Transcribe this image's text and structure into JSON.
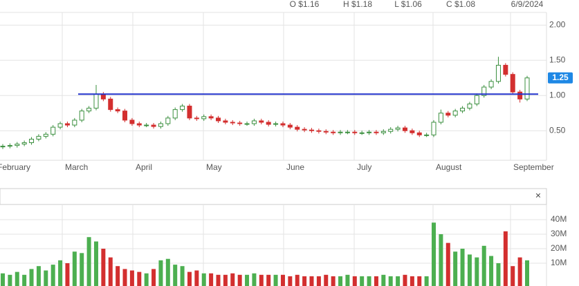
{
  "header": {
    "open": "O $1.16",
    "high": "H $1.18",
    "low": "L $1.06",
    "close": "C $1.08",
    "date": "6/9/2024"
  },
  "chart_data": [
    {
      "type": "candlestick",
      "month_labels": [
        "February",
        "March",
        "April",
        "May",
        "June",
        "July",
        "August",
        "September"
      ],
      "open": [
        0.27,
        0.28,
        0.29,
        0.31,
        0.33,
        0.38,
        0.42,
        0.45,
        0.55,
        0.6,
        0.58,
        0.65,
        0.78,
        0.82,
        1.02,
        0.95,
        0.8,
        0.78,
        0.65,
        0.6,
        0.58,
        0.58,
        0.56,
        0.6,
        0.68,
        0.8,
        0.85,
        0.68,
        0.67,
        0.7,
        0.68,
        0.64,
        0.62,
        0.61,
        0.6,
        0.6,
        0.64,
        0.62,
        0.59,
        0.6,
        0.58,
        0.55,
        0.52,
        0.51,
        0.5,
        0.49,
        0.48,
        0.47,
        0.48,
        0.48,
        0.47,
        0.47,
        0.48,
        0.47,
        0.49,
        0.52,
        0.54,
        0.5,
        0.47,
        0.44,
        0.44,
        0.62,
        0.75,
        0.72,
        0.78,
        0.82,
        0.88,
        1.0,
        1.12,
        1.2,
        1.43,
        1.3,
        1.05,
        0.95
      ],
      "high": [
        0.31,
        0.32,
        0.34,
        0.36,
        0.41,
        0.45,
        0.48,
        0.58,
        0.63,
        0.63,
        0.68,
        0.81,
        0.85,
        1.15,
        1.05,
        0.98,
        0.83,
        0.81,
        0.68,
        0.63,
        0.61,
        0.61,
        0.63,
        0.71,
        0.83,
        0.88,
        0.88,
        0.71,
        0.73,
        0.73,
        0.71,
        0.67,
        0.65,
        0.64,
        0.63,
        0.67,
        0.67,
        0.65,
        0.63,
        0.63,
        0.61,
        0.58,
        0.55,
        0.54,
        0.53,
        0.52,
        0.51,
        0.51,
        0.51,
        0.51,
        0.5,
        0.51,
        0.51,
        0.52,
        0.55,
        0.57,
        0.57,
        0.53,
        0.5,
        0.47,
        0.65,
        0.8,
        0.78,
        0.81,
        0.85,
        0.91,
        1.03,
        1.15,
        1.23,
        1.55,
        1.46,
        1.33,
        1.08,
        1.28
      ],
      "low": [
        0.24,
        0.25,
        0.26,
        0.28,
        0.3,
        0.35,
        0.39,
        0.42,
        0.52,
        0.55,
        0.55,
        0.62,
        0.75,
        0.79,
        0.92,
        0.77,
        0.75,
        0.62,
        0.57,
        0.55,
        0.55,
        0.53,
        0.53,
        0.57,
        0.65,
        0.77,
        0.65,
        0.64,
        0.64,
        0.65,
        0.61,
        0.59,
        0.58,
        0.57,
        0.57,
        0.57,
        0.59,
        0.56,
        0.56,
        0.55,
        0.52,
        0.49,
        0.48,
        0.47,
        0.46,
        0.45,
        0.44,
        0.44,
        0.45,
        0.44,
        0.44,
        0.44,
        0.44,
        0.44,
        0.46,
        0.49,
        0.47,
        0.44,
        0.41,
        0.41,
        0.41,
        0.59,
        0.69,
        0.69,
        0.75,
        0.79,
        0.85,
        0.97,
        1.09,
        1.17,
        1.27,
        1.02,
        0.9,
        0.92
      ],
      "close": [
        0.28,
        0.29,
        0.31,
        0.33,
        0.38,
        0.42,
        0.45,
        0.55,
        0.6,
        0.58,
        0.65,
        0.78,
        0.82,
        1.02,
        0.95,
        0.8,
        0.78,
        0.65,
        0.6,
        0.58,
        0.58,
        0.56,
        0.6,
        0.68,
        0.8,
        0.85,
        0.68,
        0.67,
        0.7,
        0.68,
        0.64,
        0.62,
        0.61,
        0.6,
        0.6,
        0.64,
        0.62,
        0.59,
        0.6,
        0.58,
        0.55,
        0.52,
        0.51,
        0.5,
        0.49,
        0.48,
        0.47,
        0.48,
        0.48,
        0.47,
        0.47,
        0.48,
        0.47,
        0.49,
        0.52,
        0.54,
        0.5,
        0.47,
        0.44,
        0.44,
        0.62,
        0.75,
        0.72,
        0.78,
        0.82,
        0.88,
        1.0,
        1.12,
        1.2,
        1.43,
        1.3,
        1.05,
        0.95,
        1.25
      ],
      "up_color": "#4caf50",
      "down_color": "#d32f2f",
      "hline": 1.02,
      "hline_color": "#2233cc",
      "last_price": 1.25,
      "last_color": "#1e88e5",
      "ylim": [
        0.08,
        2.18
      ],
      "yticks": [
        {
          "value": 0.5,
          "label": "0.50"
        },
        {
          "value": 1,
          "label": "1.00"
        },
        {
          "value": 1.5,
          "label": "1.50"
        },
        {
          "value": 2,
          "label": "2.00"
        }
      ],
      "grid": true
    },
    {
      "type": "bar",
      "values": [
        3000000,
        2000000,
        4000000,
        2000000,
        6000000,
        8000000,
        5000000,
        9000000,
        12000000,
        10000000,
        18000000,
        17000000,
        28000000,
        25000000,
        20000000,
        14000000,
        8000000,
        6000000,
        5000000,
        4000000,
        3000000,
        6000000,
        12000000,
        13000000,
        9000000,
        8000000,
        4000000,
        5000000,
        3000000,
        3000000,
        2000000,
        2000000,
        3000000,
        2000000,
        2000000,
        3000000,
        2000000,
        2000000,
        2000000,
        2000000,
        1000000,
        2000000,
        1000000,
        1000000,
        1000000,
        2000000,
        1000000,
        1000000,
        2000000,
        1000000,
        1000000,
        1000000,
        1000000,
        2000000,
        1000000,
        1000000,
        2000000,
        1000000,
        1000000,
        1000000,
        38000000,
        30000000,
        24000000,
        18000000,
        20000000,
        16000000,
        14000000,
        22000000,
        15000000,
        10000000,
        32000000,
        8000000,
        14000000,
        12000000
      ],
      "ylim": [
        0,
        50500000
      ],
      "yticks": [
        {
          "value": 10000000,
          "label": "10M"
        },
        {
          "value": 20000000,
          "label": "20M"
        },
        {
          "value": 30000000,
          "label": "30M"
        },
        {
          "value": 40000000,
          "label": "40M"
        }
      ],
      "grid": true
    }
  ]
}
